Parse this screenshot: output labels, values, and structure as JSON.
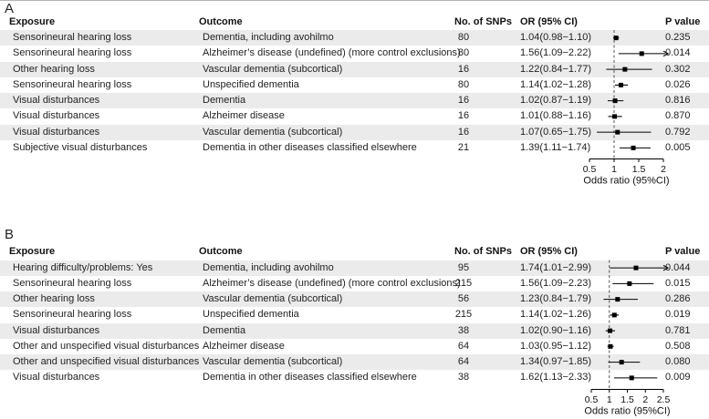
{
  "colors": {
    "stripe": "#ebebeb",
    "text": "#1f1f1f",
    "axis_line": "#000000",
    "ref_line": "#555555",
    "marker": "#000000"
  },
  "chart_data": [
    {
      "type": "forest",
      "panel_label": "A",
      "columns": {
        "exposure": "Exposure",
        "outcome": "Outcome",
        "snps": "No. of SNPs",
        "or_ci": "OR (95% CI)",
        "p": "P value"
      },
      "axis": {
        "min": 0.5,
        "max": 2,
        "ticks": [
          0.5,
          1,
          1.5,
          2
        ],
        "tick_labels": [
          "0.5",
          "1",
          "1.5",
          "2"
        ],
        "ref_line": 1,
        "title": "Odds ratio (95%CI)"
      },
      "rows": [
        {
          "exposure": "Sensorineural hearing loss",
          "outcome": "Dementia, including avohilmo",
          "snps": "80",
          "or_ci": "1.04(0.98−1.10)",
          "p": "0.235",
          "or": 1.04,
          "lo": 0.98,
          "hi": 1.1
        },
        {
          "exposure": "Sensorineural hearing loss",
          "outcome": "Alzheimer’s disease (undefined) (more control exclusions)",
          "snps": "80",
          "or_ci": "1.56(1.09−2.22)",
          "p": "0.014",
          "or": 1.56,
          "lo": 1.09,
          "hi": 2.22
        },
        {
          "exposure": "Other hearing loss",
          "outcome": "Vascular dementia (subcortical)",
          "snps": "16",
          "or_ci": "1.22(0.84−1.77)",
          "p": "0.302",
          "or": 1.22,
          "lo": 0.84,
          "hi": 1.77
        },
        {
          "exposure": "Sensorineural hearing loss",
          "outcome": "Unspecified dementia",
          "snps": "80",
          "or_ci": "1.14(1.02−1.28)",
          "p": "0.026",
          "or": 1.14,
          "lo": 1.02,
          "hi": 1.28
        },
        {
          "exposure": "Visual disturbances",
          "outcome": "Dementia",
          "snps": "16",
          "or_ci": "1.02(0.87−1.19)",
          "p": "0.816",
          "or": 1.02,
          "lo": 0.87,
          "hi": 1.19
        },
        {
          "exposure": "Visual disturbances",
          "outcome": "Alzheimer disease",
          "snps": "16",
          "or_ci": "1.01(0.88−1.16)",
          "p": "0.870",
          "or": 1.01,
          "lo": 0.88,
          "hi": 1.16
        },
        {
          "exposure": "Visual disturbances",
          "outcome": "Vascular dementia (subcortical)",
          "snps": "16",
          "or_ci": "1.07(0.65−1.75)",
          "p": "0.792",
          "or": 1.07,
          "lo": 0.65,
          "hi": 1.75
        },
        {
          "exposure": "Subjective visual disturbances",
          "outcome": "Dementia in other diseases classified elsewhere",
          "snps": "21",
          "or_ci": "1.39(1.11−1.74)",
          "p": "0.005",
          "or": 1.39,
          "lo": 1.11,
          "hi": 1.74
        }
      ]
    },
    {
      "type": "forest",
      "panel_label": "B",
      "columns": {
        "exposure": "Exposure",
        "outcome": "Outcome",
        "snps": "No. of SNPs",
        "or_ci": "OR (95% CI)",
        "p": "P value"
      },
      "axis": {
        "min": 0.5,
        "max": 2.5,
        "ticks": [
          0.5,
          1,
          1.5,
          2,
          2.5
        ],
        "tick_labels": [
          "0.5",
          "1",
          "1.5",
          "2",
          "2.5"
        ],
        "ref_line": 1,
        "title": "Odds ratio (95%CI)"
      },
      "rows": [
        {
          "exposure": "Hearing difficulty/problems: Yes",
          "outcome": "Dementia, including avohilmo",
          "snps": "95",
          "or_ci": "1.74(1.01−2.99)",
          "p": "0.044",
          "or": 1.74,
          "lo": 1.01,
          "hi": 2.99
        },
        {
          "exposure": "Sensorineural hearing loss",
          "outcome": "Alzheimer’s disease (undefined) (more control exclusions)",
          "snps": "215",
          "or_ci": "1.56(1.09−2.23)",
          "p": "0.015",
          "or": 1.56,
          "lo": 1.09,
          "hi": 2.23
        },
        {
          "exposure": "Other hearing loss",
          "outcome": "Vascular dementia (subcortical)",
          "snps": "56",
          "or_ci": "1.23(0.84−1.79)",
          "p": "0.286",
          "or": 1.23,
          "lo": 0.84,
          "hi": 1.79
        },
        {
          "exposure": "Sensorineural hearing loss",
          "outcome": "Unspecified dementia",
          "snps": "215",
          "or_ci": "1.14(1.02−1.26)",
          "p": "0.019",
          "or": 1.14,
          "lo": 1.02,
          "hi": 1.26
        },
        {
          "exposure": "Visual disturbances",
          "outcome": "Dementia",
          "snps": "38",
          "or_ci": "1.02(0.90−1.16)",
          "p": "0.781",
          "or": 1.02,
          "lo": 0.9,
          "hi": 1.16
        },
        {
          "exposure": "Other and unspecified visual disturbances",
          "outcome": "Alzheimer disease",
          "snps": "64",
          "or_ci": "1.03(0.95−1.12)",
          "p": "0.508",
          "or": 1.03,
          "lo": 0.95,
          "hi": 1.12
        },
        {
          "exposure": "Other and unspecified visual disturbances",
          "outcome": "Vascular dementia (subcortical)",
          "snps": "64",
          "or_ci": "1.34(0.97−1.85)",
          "p": "0.080",
          "or": 1.34,
          "lo": 0.97,
          "hi": 1.85
        },
        {
          "exposure": "Visual disturbances",
          "outcome": "Dementia in other diseases classified elsewhere",
          "snps": "38",
          "or_ci": "1.62(1.13−2.33)",
          "p": "0.009",
          "or": 1.62,
          "lo": 1.13,
          "hi": 2.33
        }
      ]
    }
  ]
}
